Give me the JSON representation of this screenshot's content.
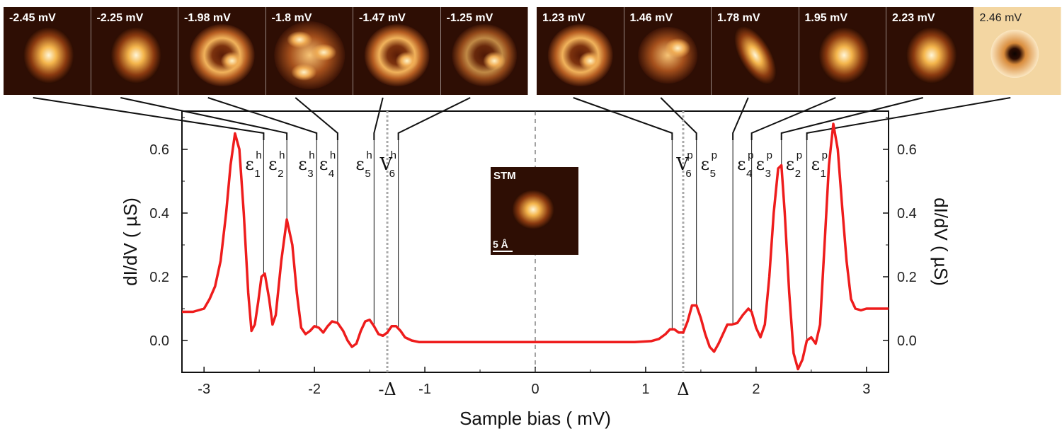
{
  "figure": {
    "colors": {
      "curve": "#ee1c1c",
      "axis": "#111111",
      "connector": "#111111",
      "marker": "#111111",
      "delta_marker": "#aaaaaa",
      "zero_line": "#444444"
    }
  },
  "inset": {
    "title": "STM",
    "scale_label": "5 Å"
  },
  "panels": {
    "hole": [
      {
        "label": "-2.45 mV",
        "bias": -2.45,
        "pattern": "bright-spot"
      },
      {
        "label": "-2.25 mV",
        "bias": -2.25,
        "pattern": "bright-spot"
      },
      {
        "label": "-1.98 mV",
        "bias": -1.98,
        "pattern": "ring"
      },
      {
        "label": "-1.8 mV",
        "bias": -1.8,
        "pattern": "multi-lobe"
      },
      {
        "label": "-1.47 mV",
        "bias": -1.47,
        "pattern": "ring"
      },
      {
        "label": "-1.25 mV",
        "bias": -1.25,
        "pattern": "faint-ring"
      }
    ],
    "particle": [
      {
        "label": "1.23 mV",
        "bias": 1.23,
        "pattern": "ring"
      },
      {
        "label": "1.46 mV",
        "bias": 1.46,
        "pattern": "faint-spot"
      },
      {
        "label": "1.78 mV",
        "bias": 1.78,
        "pattern": "elongated"
      },
      {
        "label": "1.95 mV",
        "bias": 1.95,
        "pattern": "bright-spot"
      },
      {
        "label": "2.23 mV",
        "bias": 2.23,
        "pattern": "bright-spot"
      },
      {
        "label": "2.46 mV",
        "bias": 2.46,
        "pattern": "dark-hole"
      }
    ]
  },
  "levels": [
    {
      "symbol": "ε",
      "sub": "1",
      "sup": "h",
      "bias": -2.46
    },
    {
      "symbol": "ε",
      "sub": "2",
      "sup": "h",
      "bias": -2.25
    },
    {
      "symbol": "ε",
      "sub": "3",
      "sup": "h",
      "bias": -1.98
    },
    {
      "symbol": "ε",
      "sub": "4",
      "sup": "h",
      "bias": -1.79
    },
    {
      "symbol": "ε",
      "sub": "5",
      "sup": "h",
      "bias": -1.46
    },
    {
      "symbol": "V",
      "sub": "6",
      "sup": "h",
      "bias": -1.24
    },
    {
      "symbol": "V",
      "sub": "6",
      "sup": "p",
      "bias": 1.24
    },
    {
      "symbol": "ε",
      "sub": "5",
      "sup": "p",
      "bias": 1.46
    },
    {
      "symbol": "ε",
      "sub": "4",
      "sup": "p",
      "bias": 1.79
    },
    {
      "symbol": "ε",
      "sub": "3",
      "sup": "p",
      "bias": 1.96
    },
    {
      "symbol": "ε",
      "sub": "2",
      "sup": "p",
      "bias": 2.23
    },
    {
      "symbol": "ε",
      "sub": "1",
      "sup": "p",
      "bias": 2.46
    }
  ],
  "chart_data": {
    "type": "line",
    "title": "",
    "xlabel": "Sample bias ( mV)",
    "ylabel": "dI/dV ( µS)",
    "ylabel_right": "dI/dV ( µS)",
    "xlim": [
      -3.2,
      3.2
    ],
    "ylim": [
      -0.1,
      0.72
    ],
    "x_ticks": [
      -3,
      -2,
      -1,
      0,
      1,
      2,
      3
    ],
    "x_tick_labels": [
      "-3",
      "-2",
      "-1",
      "0",
      "1",
      "2",
      "3"
    ],
    "y_ticks": [
      0.0,
      0.2,
      0.4,
      0.6
    ],
    "y_tick_labels": [
      "0.0",
      "0.2",
      "0.4",
      "0.6"
    ],
    "grid": false,
    "delta_markers": [
      {
        "label": "-Δ",
        "x": -1.34
      },
      {
        "label": "Δ",
        "x": 1.34
      }
    ],
    "series": [
      {
        "x": [
          -3.2,
          -3.1,
          -3.0,
          -2.95,
          -2.9,
          -2.85,
          -2.8,
          -2.76,
          -2.72,
          -2.68,
          -2.64,
          -2.6,
          -2.57,
          -2.54,
          -2.51,
          -2.48,
          -2.45,
          -2.41,
          -2.38,
          -2.35,
          -2.3,
          -2.25,
          -2.2,
          -2.16,
          -2.12,
          -2.08,
          -2.04,
          -2.0,
          -1.96,
          -1.92,
          -1.88,
          -1.84,
          -1.79,
          -1.74,
          -1.7,
          -1.66,
          -1.62,
          -1.58,
          -1.54,
          -1.5,
          -1.46,
          -1.42,
          -1.38,
          -1.34,
          -1.3,
          -1.26,
          -1.22,
          -1.18,
          -1.12,
          -1.05,
          -0.9,
          -0.7,
          -0.4,
          0.0,
          0.4,
          0.7,
          0.9,
          1.05,
          1.12,
          1.18,
          1.22,
          1.26,
          1.3,
          1.34,
          1.38,
          1.42,
          1.46,
          1.5,
          1.54,
          1.58,
          1.62,
          1.66,
          1.7,
          1.74,
          1.78,
          1.83,
          1.88,
          1.93,
          1.96,
          2.0,
          2.04,
          2.08,
          2.12,
          2.16,
          2.2,
          2.23,
          2.26,
          2.3,
          2.34,
          2.38,
          2.42,
          2.46,
          2.5,
          2.54,
          2.58,
          2.62,
          2.66,
          2.7,
          2.74,
          2.78,
          2.82,
          2.86,
          2.9,
          2.95,
          3.0,
          3.1,
          3.2
        ],
        "y": [
          0.09,
          0.09,
          0.1,
          0.13,
          0.17,
          0.25,
          0.4,
          0.55,
          0.65,
          0.6,
          0.4,
          0.15,
          0.03,
          0.05,
          0.12,
          0.2,
          0.21,
          0.13,
          0.05,
          0.08,
          0.25,
          0.38,
          0.3,
          0.15,
          0.04,
          0.02,
          0.03,
          0.045,
          0.04,
          0.025,
          0.045,
          0.06,
          0.055,
          0.03,
          0.0,
          -0.02,
          -0.01,
          0.03,
          0.06,
          0.065,
          0.045,
          0.02,
          0.015,
          0.025,
          0.045,
          0.045,
          0.03,
          0.01,
          0.0,
          -0.005,
          -0.005,
          -0.005,
          -0.005,
          -0.005,
          -0.005,
          -0.005,
          -0.005,
          -0.002,
          0.005,
          0.02,
          0.035,
          0.035,
          0.025,
          0.025,
          0.06,
          0.11,
          0.11,
          0.07,
          0.02,
          -0.02,
          -0.035,
          -0.01,
          0.02,
          0.05,
          0.05,
          0.055,
          0.08,
          0.1,
          0.09,
          0.04,
          0.01,
          0.05,
          0.2,
          0.4,
          0.54,
          0.55,
          0.4,
          0.15,
          -0.04,
          -0.09,
          -0.06,
          0.0,
          0.01,
          -0.01,
          0.05,
          0.3,
          0.55,
          0.68,
          0.6,
          0.42,
          0.25,
          0.13,
          0.1,
          0.095,
          0.1,
          0.1,
          0.1
        ]
      }
    ]
  }
}
